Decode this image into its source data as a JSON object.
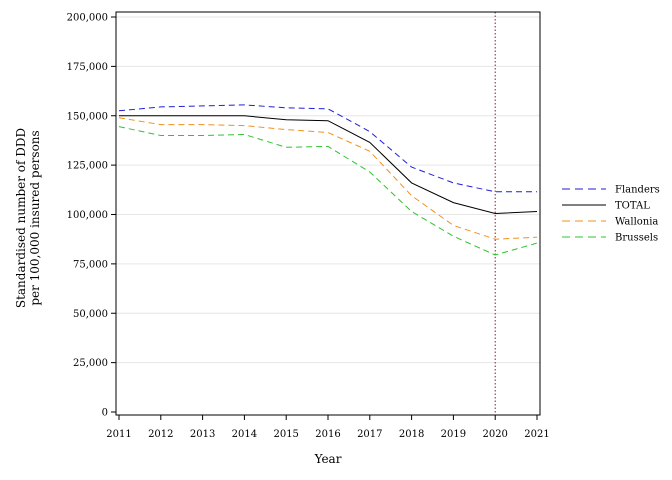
{
  "chart_data": {
    "type": "line",
    "title": "",
    "xlabel": "Year",
    "ylabel_lines": [
      "Standardised number of DDD",
      "per 100,000 insured persons"
    ],
    "x": [
      2011,
      2012,
      2013,
      2014,
      2015,
      2016,
      2017,
      2018,
      2019,
      2020,
      2021
    ],
    "xlim": [
      2011,
      2021
    ],
    "ylim": [
      0,
      200000
    ],
    "yticks": [
      0,
      25000,
      50000,
      75000,
      100000,
      125000,
      150000,
      175000,
      200000
    ],
    "ytick_labels": [
      "0",
      "25,000",
      "50,000",
      "75,000",
      "100,000",
      "125,000",
      "150,000",
      "175,000",
      "200,000"
    ],
    "xtick_labels": [
      "2011",
      "2012",
      "2013",
      "2014",
      "2015",
      "2016",
      "2017",
      "2018",
      "2019",
      "2020",
      "2021"
    ],
    "grid": "horizontal",
    "legend_position": "right",
    "vertical_reference_line": {
      "x": 2020,
      "color": "#8b1a3a",
      "style": "dotted"
    },
    "series": [
      {
        "name": "Flanders",
        "color": "#1f1fd6",
        "dash": "dashed",
        "values": [
          152500,
          154500,
          155000,
          155500,
          154000,
          153500,
          142000,
          124000,
          116000,
          111500,
          111500
        ]
      },
      {
        "name": "TOTAL",
        "color": "#000000",
        "dash": "solid",
        "values": [
          150000,
          150000,
          150000,
          150000,
          148000,
          147500,
          136500,
          116000,
          106000,
          100500,
          101500
        ]
      },
      {
        "name": "Wallonia",
        "color": "#f0901e",
        "dash": "dashed",
        "values": [
          149000,
          145500,
          145500,
          145000,
          143000,
          141500,
          132000,
          109500,
          94500,
          87500,
          88500
        ]
      },
      {
        "name": "Brussels",
        "color": "#2ec42e",
        "dash": "dashed",
        "values": [
          144500,
          140000,
          140000,
          140500,
          134000,
          134500,
          121500,
          101500,
          89000,
          79500,
          85500
        ]
      }
    ]
  }
}
